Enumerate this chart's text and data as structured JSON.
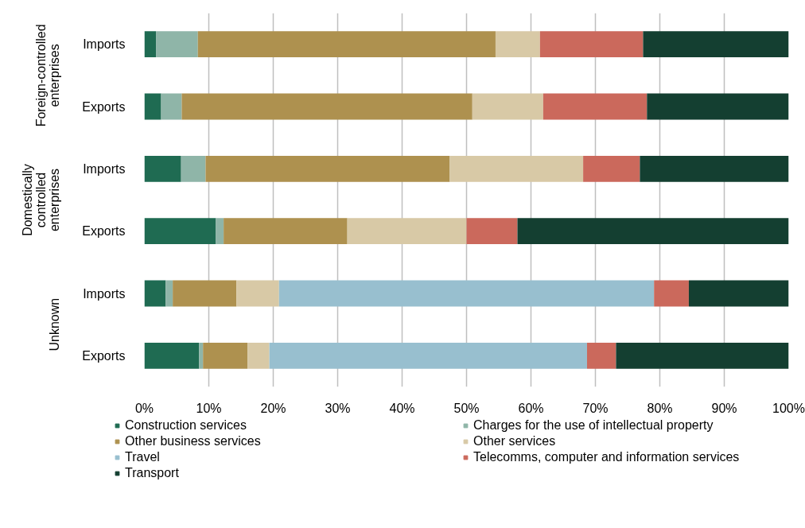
{
  "chart_data": {
    "type": "bar",
    "orientation": "horizontal",
    "stacked": true,
    "categories": [
      "Imports",
      "Exports",
      "Imports",
      "Exports",
      "Imports",
      "Exports"
    ],
    "annotations": [
      "Foreign-controlled enterprises",
      "Domestically controlled enterprises",
      "Unknown"
    ],
    "series": [
      {
        "name": "Construction services",
        "color": "#1f6b52",
        "values": [
          1.8,
          2.6,
          5.7,
          11.1,
          3.3,
          8.5
        ]
      },
      {
        "name": "Charges for the use of intellectual property",
        "color": "#8fb5a8",
        "values": [
          6.5,
          3.2,
          3.8,
          1.2,
          1.1,
          0.6
        ]
      },
      {
        "name": "Other business services",
        "color": "#ae914f",
        "values": [
          46.2,
          45.1,
          37.9,
          19.2,
          9.9,
          6.9
        ]
      },
      {
        "name": "Other services",
        "color": "#d8c9a6",
        "values": [
          6.9,
          11.0,
          20.7,
          18.5,
          6.6,
          3.4
        ]
      },
      {
        "name": "Travel",
        "color": "#98bfcf",
        "values": [
          0,
          0,
          0,
          0,
          58.2,
          49.3
        ]
      },
      {
        "name": "Telecomms, computer and information services",
        "color": "#cb695c",
        "values": [
          16.0,
          16.1,
          8.8,
          7.9,
          5.4,
          4.5
        ]
      },
      {
        "name": "Transport",
        "color": "#143f31",
        "values": [
          22.6,
          22.0,
          23.1,
          42.1,
          15.5,
          26.8
        ]
      }
    ],
    "xlim": [
      0,
      100
    ],
    "xticks": [
      {
        "value": 0,
        "label": "0%"
      },
      {
        "value": 10,
        "label": "10%"
      },
      {
        "value": 20,
        "label": "20%"
      },
      {
        "value": 30,
        "label": "30%"
      },
      {
        "value": 40,
        "label": "40%"
      },
      {
        "value": 50,
        "label": "50%"
      },
      {
        "value": 60,
        "label": "60%"
      },
      {
        "value": 70,
        "label": "70%"
      },
      {
        "value": 80,
        "label": "80%"
      },
      {
        "value": 90,
        "label": "90%"
      },
      {
        "value": 100,
        "label": "100%"
      }
    ],
    "grid": "x",
    "legend": "bottom"
  }
}
